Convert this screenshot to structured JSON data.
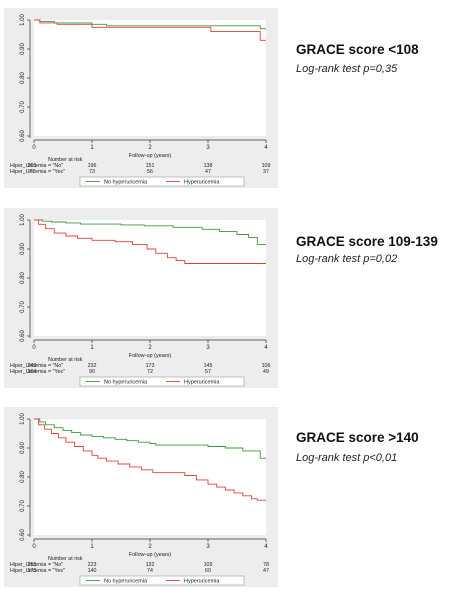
{
  "chart_data": [
    {
      "type": "line",
      "title": "GRACE score <108",
      "subtitle": "Log-rank test p=0,35",
      "xlabel": "Follow-up (years)",
      "ylabel": "",
      "xlim": [
        0,
        4
      ],
      "ylim": [
        0.6,
        1.0
      ],
      "x_ticks": [
        "0",
        "1",
        "2",
        "3",
        "4"
      ],
      "y_ticks": [
        "0.60",
        "0.70",
        "0.80",
        "0.90",
        "1.00"
      ],
      "grid": false,
      "legend": "bottom",
      "risk_title": "Number at risk",
      "risk_table": [
        {
          "label": "Hiper_Uricemia = \"No\"",
          "values": [
            "201",
            "196",
            "151",
            "138",
            "109"
          ]
        },
        {
          "label": "Hiper_Uricemia = \"Yes\"",
          "values": [
            "77",
            "73",
            "56",
            "47",
            "37"
          ]
        }
      ],
      "series": [
        {
          "name": "No hyperuricemia",
          "color": "#3a9a3a",
          "x": [
            0,
            0.1,
            0.1,
            0.35,
            0.35,
            1.0,
            1.0,
            1.25,
            1.25,
            3.9,
            3.9,
            4.0
          ],
          "y": [
            1.0,
            1.0,
            0.995,
            0.995,
            0.99,
            0.99,
            0.985,
            0.985,
            0.98,
            0.98,
            0.97,
            0.97
          ]
        },
        {
          "name": "Hyperuricemia",
          "color": "#e0403a",
          "x": [
            0,
            0.1,
            0.1,
            0.4,
            0.4,
            1.0,
            1.0,
            3.05,
            3.05,
            3.9,
            3.9,
            4.0
          ],
          "y": [
            1.0,
            1.0,
            0.99,
            0.99,
            0.985,
            0.985,
            0.975,
            0.975,
            0.96,
            0.96,
            0.93,
            0.93
          ]
        }
      ]
    },
    {
      "type": "line",
      "title": "GRACE score 109-139",
      "subtitle": "Log-rank test p=0,02",
      "xlabel": "Follow-up (years)",
      "ylabel": "",
      "xlim": [
        0,
        4
      ],
      "ylim": [
        0.6,
        1.0
      ],
      "x_ticks": [
        "0",
        "1",
        "2",
        "3",
        "4"
      ],
      "y_ticks": [
        "0.60",
        "0.70",
        "0.80",
        "0.90",
        "1.00"
      ],
      "grid": false,
      "legend": "bottom",
      "risk_title": "Number at risk",
      "risk_table": [
        {
          "label": "Hiper_Uricemia = \"No\"",
          "values": [
            "249",
            "232",
            "173",
            "145",
            "106"
          ]
        },
        {
          "label": "Hiper_Uricemia = \"Yes\"",
          "values": [
            "104",
            "90",
            "72",
            "57",
            "49"
          ]
        }
      ],
      "series": [
        {
          "name": "No hyperuricemia",
          "color": "#3a9a3a",
          "x": [
            0,
            0.15,
            0.15,
            0.3,
            0.3,
            0.55,
            0.55,
            0.8,
            0.8,
            1.5,
            1.5,
            1.9,
            1.9,
            2.4,
            2.4,
            2.9,
            2.9,
            3.2,
            3.2,
            3.5,
            3.5,
            3.7,
            3.7,
            3.85,
            3.85,
            4.0
          ],
          "y": [
            1.0,
            1.0,
            0.996,
            0.996,
            0.993,
            0.993,
            0.99,
            0.99,
            0.986,
            0.986,
            0.983,
            0.983,
            0.98,
            0.98,
            0.975,
            0.975,
            0.968,
            0.968,
            0.96,
            0.96,
            0.95,
            0.95,
            0.94,
            0.94,
            0.915,
            0.915
          ]
        },
        {
          "name": "Hyperuricemia",
          "color": "#e0403a",
          "x": [
            0,
            0.08,
            0.08,
            0.2,
            0.2,
            0.35,
            0.35,
            0.55,
            0.55,
            0.75,
            0.75,
            1.0,
            1.0,
            1.4,
            1.4,
            1.7,
            1.7,
            1.95,
            1.95,
            2.1,
            2.1,
            2.3,
            2.3,
            2.45,
            2.45,
            2.6,
            2.6,
            4.0
          ],
          "y": [
            1.0,
            1.0,
            0.985,
            0.985,
            0.97,
            0.97,
            0.955,
            0.955,
            0.945,
            0.945,
            0.937,
            0.937,
            0.93,
            0.93,
            0.925,
            0.925,
            0.915,
            0.915,
            0.9,
            0.9,
            0.885,
            0.885,
            0.87,
            0.87,
            0.86,
            0.86,
            0.85,
            0.85
          ]
        }
      ]
    },
    {
      "type": "line",
      "title": "GRACE score >140",
      "subtitle": "Log-rank test p<0,01",
      "xlabel": "Follow-up (years)",
      "ylabel": "",
      "xlim": [
        0,
        4
      ],
      "ylim": [
        0.6,
        1.0
      ],
      "x_ticks": [
        "0",
        "1",
        "2",
        "3",
        "4"
      ],
      "y_ticks": [
        "0.60",
        "0.70",
        "0.80",
        "0.90",
        "1.00"
      ],
      "grid": false,
      "legend": "bottom",
      "risk_title": "Number at risk",
      "risk_table": [
        {
          "label": "Hiper_Uricemia = \"No\"",
          "values": [
            "255",
            "223",
            "132",
            "109",
            "78"
          ]
        },
        {
          "label": "Hiper_Uricemia = \"Yes\"",
          "values": [
            "175",
            "140",
            "74",
            "60",
            "47"
          ]
        }
      ],
      "series": [
        {
          "name": "No hyperuricemia",
          "color": "#3a9a3a",
          "x": [
            0,
            0.1,
            0.1,
            0.2,
            0.2,
            0.35,
            0.35,
            0.5,
            0.5,
            0.65,
            0.65,
            0.8,
            0.8,
            1.0,
            1.0,
            1.2,
            1.2,
            1.4,
            1.4,
            1.6,
            1.6,
            1.8,
            1.8,
            2.0,
            2.0,
            2.1,
            2.1,
            3.0,
            3.0,
            3.3,
            3.3,
            3.6,
            3.6,
            3.9,
            3.9,
            4.0
          ],
          "y": [
            1.0,
            1.0,
            0.99,
            0.99,
            0.98,
            0.98,
            0.97,
            0.97,
            0.96,
            0.96,
            0.953,
            0.953,
            0.945,
            0.945,
            0.94,
            0.94,
            0.935,
            0.935,
            0.93,
            0.93,
            0.925,
            0.925,
            0.92,
            0.92,
            0.915,
            0.915,
            0.91,
            0.91,
            0.905,
            0.905,
            0.9,
            0.9,
            0.89,
            0.89,
            0.865,
            0.865
          ]
        },
        {
          "name": "Hyperuricemia",
          "color": "#e0403a",
          "x": [
            0,
            0.08,
            0.08,
            0.18,
            0.18,
            0.3,
            0.3,
            0.42,
            0.42,
            0.55,
            0.55,
            0.7,
            0.7,
            0.85,
            0.85,
            1.0,
            1.0,
            1.1,
            1.1,
            1.25,
            1.25,
            1.45,
            1.45,
            1.65,
            1.65,
            1.85,
            1.85,
            2.05,
            2.05,
            2.6,
            2.6,
            2.8,
            2.8,
            3.0,
            3.0,
            3.15,
            3.15,
            3.3,
            3.3,
            3.45,
            3.45,
            3.6,
            3.6,
            3.75,
            3.75,
            3.85,
            3.85,
            4.0
          ],
          "y": [
            1.0,
            1.0,
            0.98,
            0.98,
            0.965,
            0.965,
            0.95,
            0.95,
            0.935,
            0.935,
            0.92,
            0.92,
            0.905,
            0.905,
            0.89,
            0.89,
            0.875,
            0.875,
            0.865,
            0.865,
            0.855,
            0.855,
            0.845,
            0.845,
            0.835,
            0.835,
            0.825,
            0.825,
            0.815,
            0.815,
            0.805,
            0.805,
            0.79,
            0.79,
            0.775,
            0.775,
            0.765,
            0.765,
            0.755,
            0.755,
            0.745,
            0.745,
            0.735,
            0.735,
            0.725,
            0.725,
            0.72,
            0.72
          ]
        }
      ]
    }
  ]
}
